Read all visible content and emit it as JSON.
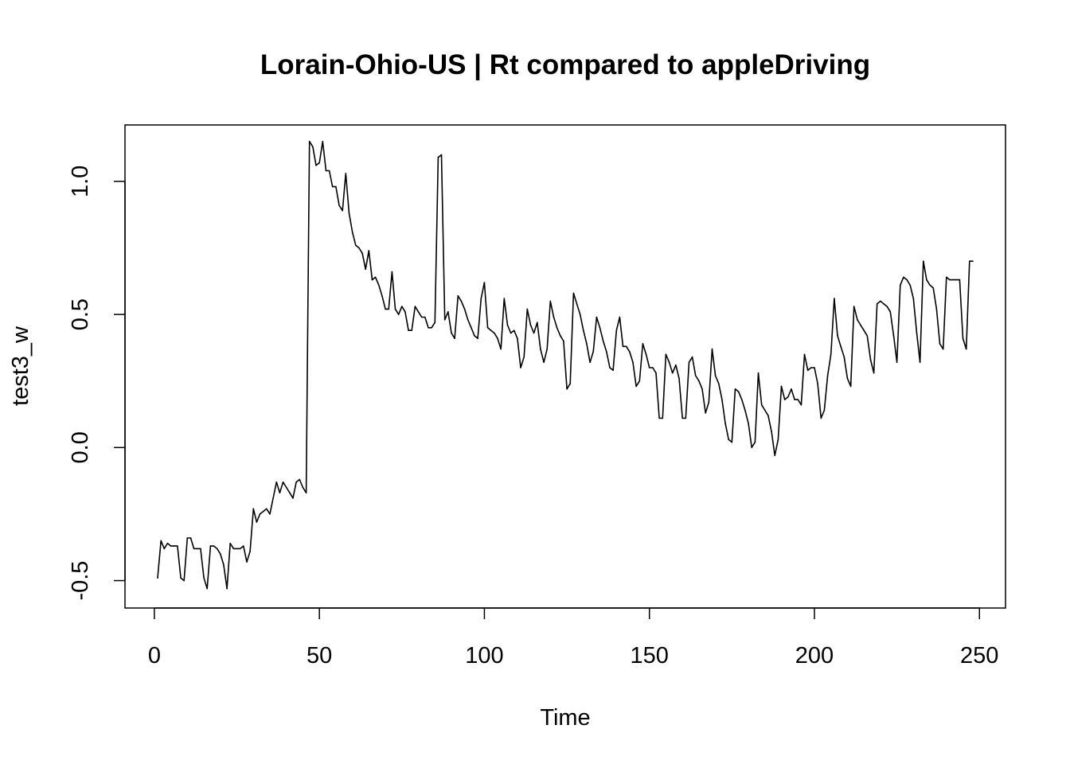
{
  "chart_data": {
    "type": "line",
    "title": "Lorain-Ohio-US | Rt compared to appleDriving",
    "xlabel": "Time",
    "ylabel": "test3_w",
    "xlim": [
      -8.9,
      257.9
    ],
    "ylim": [
      -0.603,
      1.212
    ],
    "xticks": [
      0,
      50,
      100,
      150,
      200,
      250
    ],
    "yticks": [
      -0.5,
      0.0,
      0.5,
      1.0
    ],
    "xtick_labels": [
      "0",
      "50",
      "100",
      "150",
      "200",
      "250"
    ],
    "ytick_labels": [
      "-0.5",
      "0.0",
      "0.5",
      "1.0"
    ],
    "grid": false,
    "series": [
      {
        "x": [
          1,
          2,
          3,
          4,
          5,
          6,
          7,
          8,
          9,
          10,
          11,
          12,
          13,
          14,
          15,
          16,
          17,
          18,
          19,
          20,
          21,
          22,
          23,
          24,
          25,
          26,
          27,
          28,
          29,
          30,
          31,
          32,
          33,
          34,
          35,
          36,
          37,
          38,
          39,
          40,
          41,
          42,
          43,
          44,
          45,
          46,
          47,
          48,
          49,
          50,
          51,
          52,
          53,
          54,
          55,
          56,
          57,
          58,
          59,
          60,
          61,
          62,
          63,
          64,
          65,
          66,
          67,
          68,
          69,
          70,
          71,
          72,
          73,
          74,
          75,
          76,
          77,
          78,
          79,
          80,
          81,
          82,
          83,
          84,
          85,
          86,
          87,
          88,
          89,
          90,
          91,
          92,
          93,
          94,
          95,
          96,
          97,
          98,
          99,
          100,
          101,
          102,
          103,
          104,
          105,
          106,
          107,
          108,
          109,
          110,
          111,
          112,
          113,
          114,
          115,
          116,
          117,
          118,
          119,
          120,
          121,
          122,
          123,
          124,
          125,
          126,
          127,
          128,
          129,
          130,
          131,
          132,
          133,
          134,
          135,
          136,
          137,
          138,
          139,
          140,
          141,
          142,
          143,
          144,
          145,
          146,
          147,
          148,
          149,
          150,
          151,
          152,
          153,
          154,
          155,
          156,
          157,
          158,
          159,
          160,
          161,
          162,
          163,
          164,
          165,
          166,
          167,
          168,
          169,
          170,
          171,
          172,
          173,
          174,
          175,
          176,
          177,
          178,
          179,
          180,
          181,
          182,
          183,
          184,
          185,
          186,
          187,
          188,
          189,
          190,
          191,
          192,
          193,
          194,
          195,
          196,
          197,
          198,
          199,
          200,
          201,
          202,
          203,
          204,
          205,
          206,
          207,
          208,
          209,
          210,
          211,
          212,
          213,
          214,
          215,
          216,
          217,
          218,
          219,
          220,
          221,
          222,
          223,
          224,
          225,
          226,
          227,
          228,
          229,
          230,
          231,
          232,
          233,
          234,
          235,
          236,
          237,
          238,
          239,
          240,
          241,
          242,
          243,
          244,
          245,
          246,
          247,
          248
        ],
        "values": [
          -0.49,
          -0.35,
          -0.38,
          -0.36,
          -0.37,
          -0.37,
          -0.37,
          -0.49,
          -0.5,
          -0.34,
          -0.34,
          -0.38,
          -0.38,
          -0.38,
          -0.49,
          -0.53,
          -0.37,
          -0.37,
          -0.38,
          -0.4,
          -0.44,
          -0.53,
          -0.36,
          -0.38,
          -0.38,
          -0.38,
          -0.37,
          -0.43,
          -0.39,
          -0.23,
          -0.28,
          -0.25,
          -0.24,
          -0.23,
          -0.25,
          -0.19,
          -0.13,
          -0.17,
          -0.13,
          -0.15,
          -0.17,
          -0.19,
          -0.13,
          -0.12,
          -0.15,
          -0.17,
          1.15,
          1.13,
          1.06,
          1.07,
          1.15,
          1.04,
          1.04,
          0.98,
          0.98,
          0.91,
          0.89,
          1.03,
          0.88,
          0.81,
          0.76,
          0.75,
          0.73,
          0.67,
          0.74,
          0.63,
          0.64,
          0.61,
          0.57,
          0.52,
          0.52,
          0.66,
          0.52,
          0.5,
          0.53,
          0.51,
          0.44,
          0.44,
          0.53,
          0.51,
          0.49,
          0.49,
          0.45,
          0.45,
          0.47,
          1.09,
          1.1,
          0.48,
          0.51,
          0.43,
          0.41,
          0.57,
          0.55,
          0.52,
          0.48,
          0.45,
          0.42,
          0.41,
          0.56,
          0.62,
          0.45,
          0.44,
          0.43,
          0.41,
          0.37,
          0.56,
          0.46,
          0.43,
          0.44,
          0.41,
          0.3,
          0.34,
          0.52,
          0.46,
          0.43,
          0.47,
          0.37,
          0.32,
          0.37,
          0.55,
          0.49,
          0.45,
          0.42,
          0.4,
          0.22,
          0.24,
          0.58,
          0.54,
          0.5,
          0.44,
          0.39,
          0.32,
          0.36,
          0.49,
          0.45,
          0.4,
          0.36,
          0.3,
          0.29,
          0.44,
          0.49,
          0.38,
          0.38,
          0.36,
          0.32,
          0.23,
          0.25,
          0.39,
          0.35,
          0.3,
          0.3,
          0.28,
          0.11,
          0.11,
          0.35,
          0.32,
          0.28,
          0.31,
          0.26,
          0.11,
          0.11,
          0.32,
          0.34,
          0.27,
          0.25,
          0.22,
          0.13,
          0.17,
          0.37,
          0.27,
          0.24,
          0.18,
          0.09,
          0.03,
          0.02,
          0.22,
          0.21,
          0.18,
          0.14,
          0.09,
          0.0,
          0.02,
          0.28,
          0.16,
          0.14,
          0.12,
          0.06,
          -0.03,
          0.03,
          0.23,
          0.18,
          0.19,
          0.22,
          0.18,
          0.18,
          0.16,
          0.35,
          0.29,
          0.3,
          0.3,
          0.24,
          0.11,
          0.14,
          0.27,
          0.35,
          0.56,
          0.42,
          0.38,
          0.34,
          0.26,
          0.23,
          0.53,
          0.48,
          0.46,
          0.44,
          0.42,
          0.33,
          0.28,
          0.54,
          0.55,
          0.54,
          0.53,
          0.51,
          0.42,
          0.32,
          0.61,
          0.64,
          0.63,
          0.61,
          0.56,
          0.43,
          0.32,
          0.7,
          0.63,
          0.61,
          0.6,
          0.52,
          0.39,
          0.37,
          0.64,
          0.63,
          0.63,
          0.63,
          0.63,
          0.41,
          0.37,
          0.7,
          0.7
        ]
      }
    ]
  }
}
